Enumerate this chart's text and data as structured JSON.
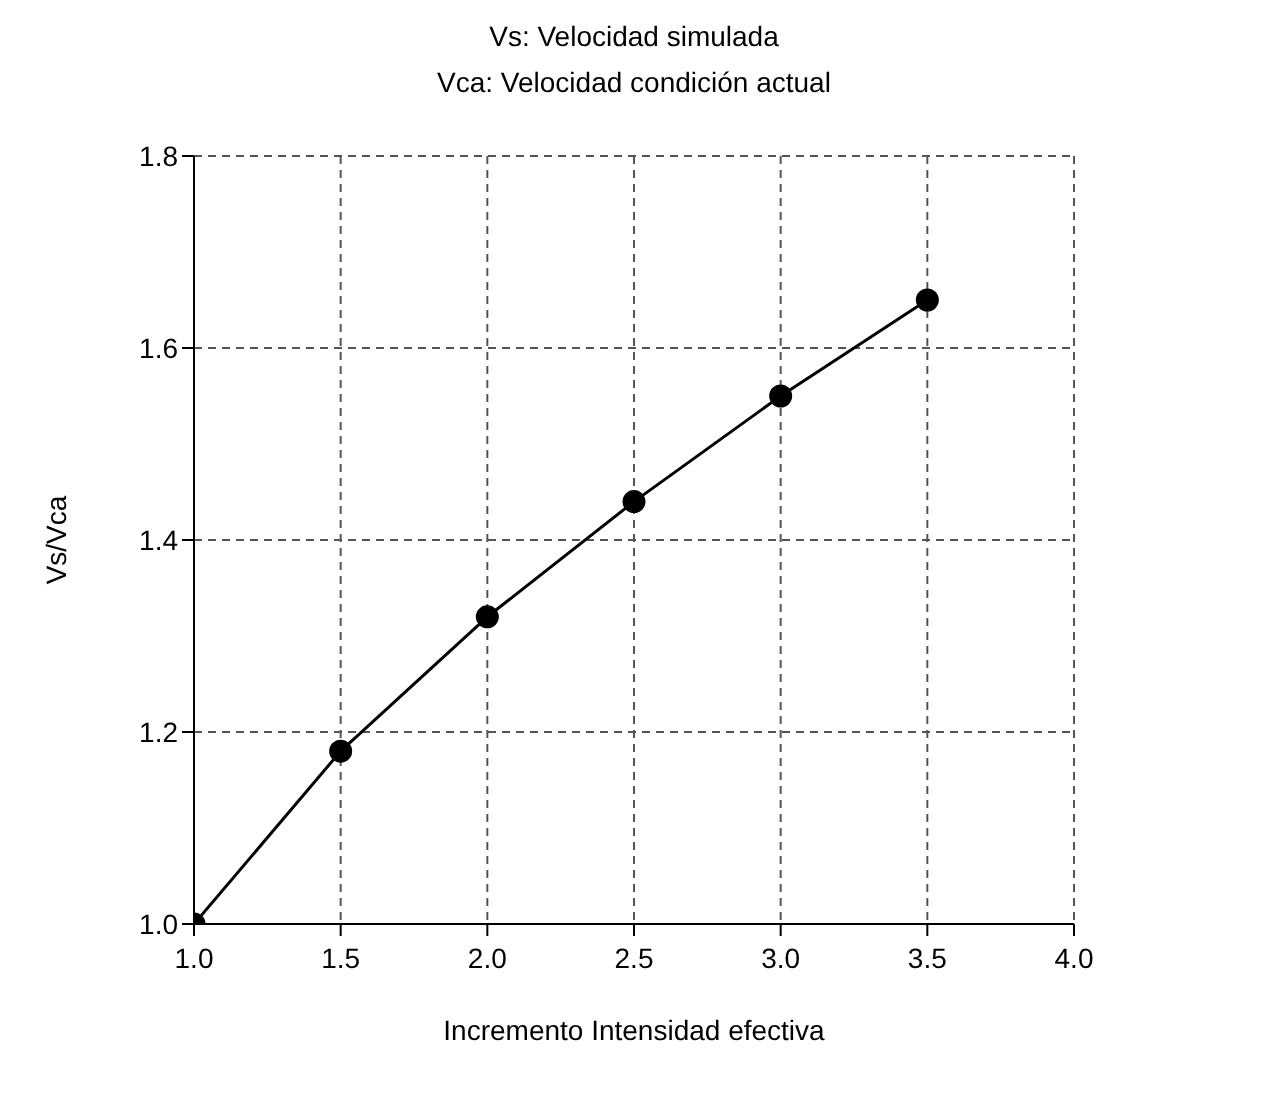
{
  "chart_data": {
    "type": "line",
    "title": "Vs: Velocidad simulada",
    "subtitle": "Vca: Velocidad condición actual",
    "xlabel": "Incremento Intensidad efectiva",
    "ylabel": "Vs/Vca",
    "x": [
      1.0,
      1.5,
      2.0,
      2.5,
      3.0,
      3.5
    ],
    "series": [
      {
        "color": "#000000",
        "values": [
          1.0,
          1.18,
          1.32,
          1.44,
          1.55,
          1.65
        ]
      }
    ],
    "xlim": [
      1.0,
      4.0
    ],
    "xticks": [
      {
        "value": 1.0,
        "label": "1.0"
      },
      {
        "value": 1.5,
        "label": "1.5"
      },
      {
        "value": 2.0,
        "label": "2.0"
      },
      {
        "value": 2.5,
        "label": "2.5"
      },
      {
        "value": 3.0,
        "label": "3.0"
      },
      {
        "value": 3.5,
        "label": "3.5"
      },
      {
        "value": 4.0,
        "label": "4.0"
      }
    ],
    "ylim": [
      1.0,
      1.8
    ],
    "yticks": [
      {
        "value": 1.0,
        "label": "1.0"
      },
      {
        "value": 1.2,
        "label": "1.2"
      },
      {
        "value": 1.4,
        "label": "1.4"
      },
      {
        "value": 1.6,
        "label": "1.6"
      },
      {
        "value": 1.8,
        "label": "1.8"
      }
    ],
    "grid": true,
    "marker": "circle",
    "line_style": "solid"
  }
}
